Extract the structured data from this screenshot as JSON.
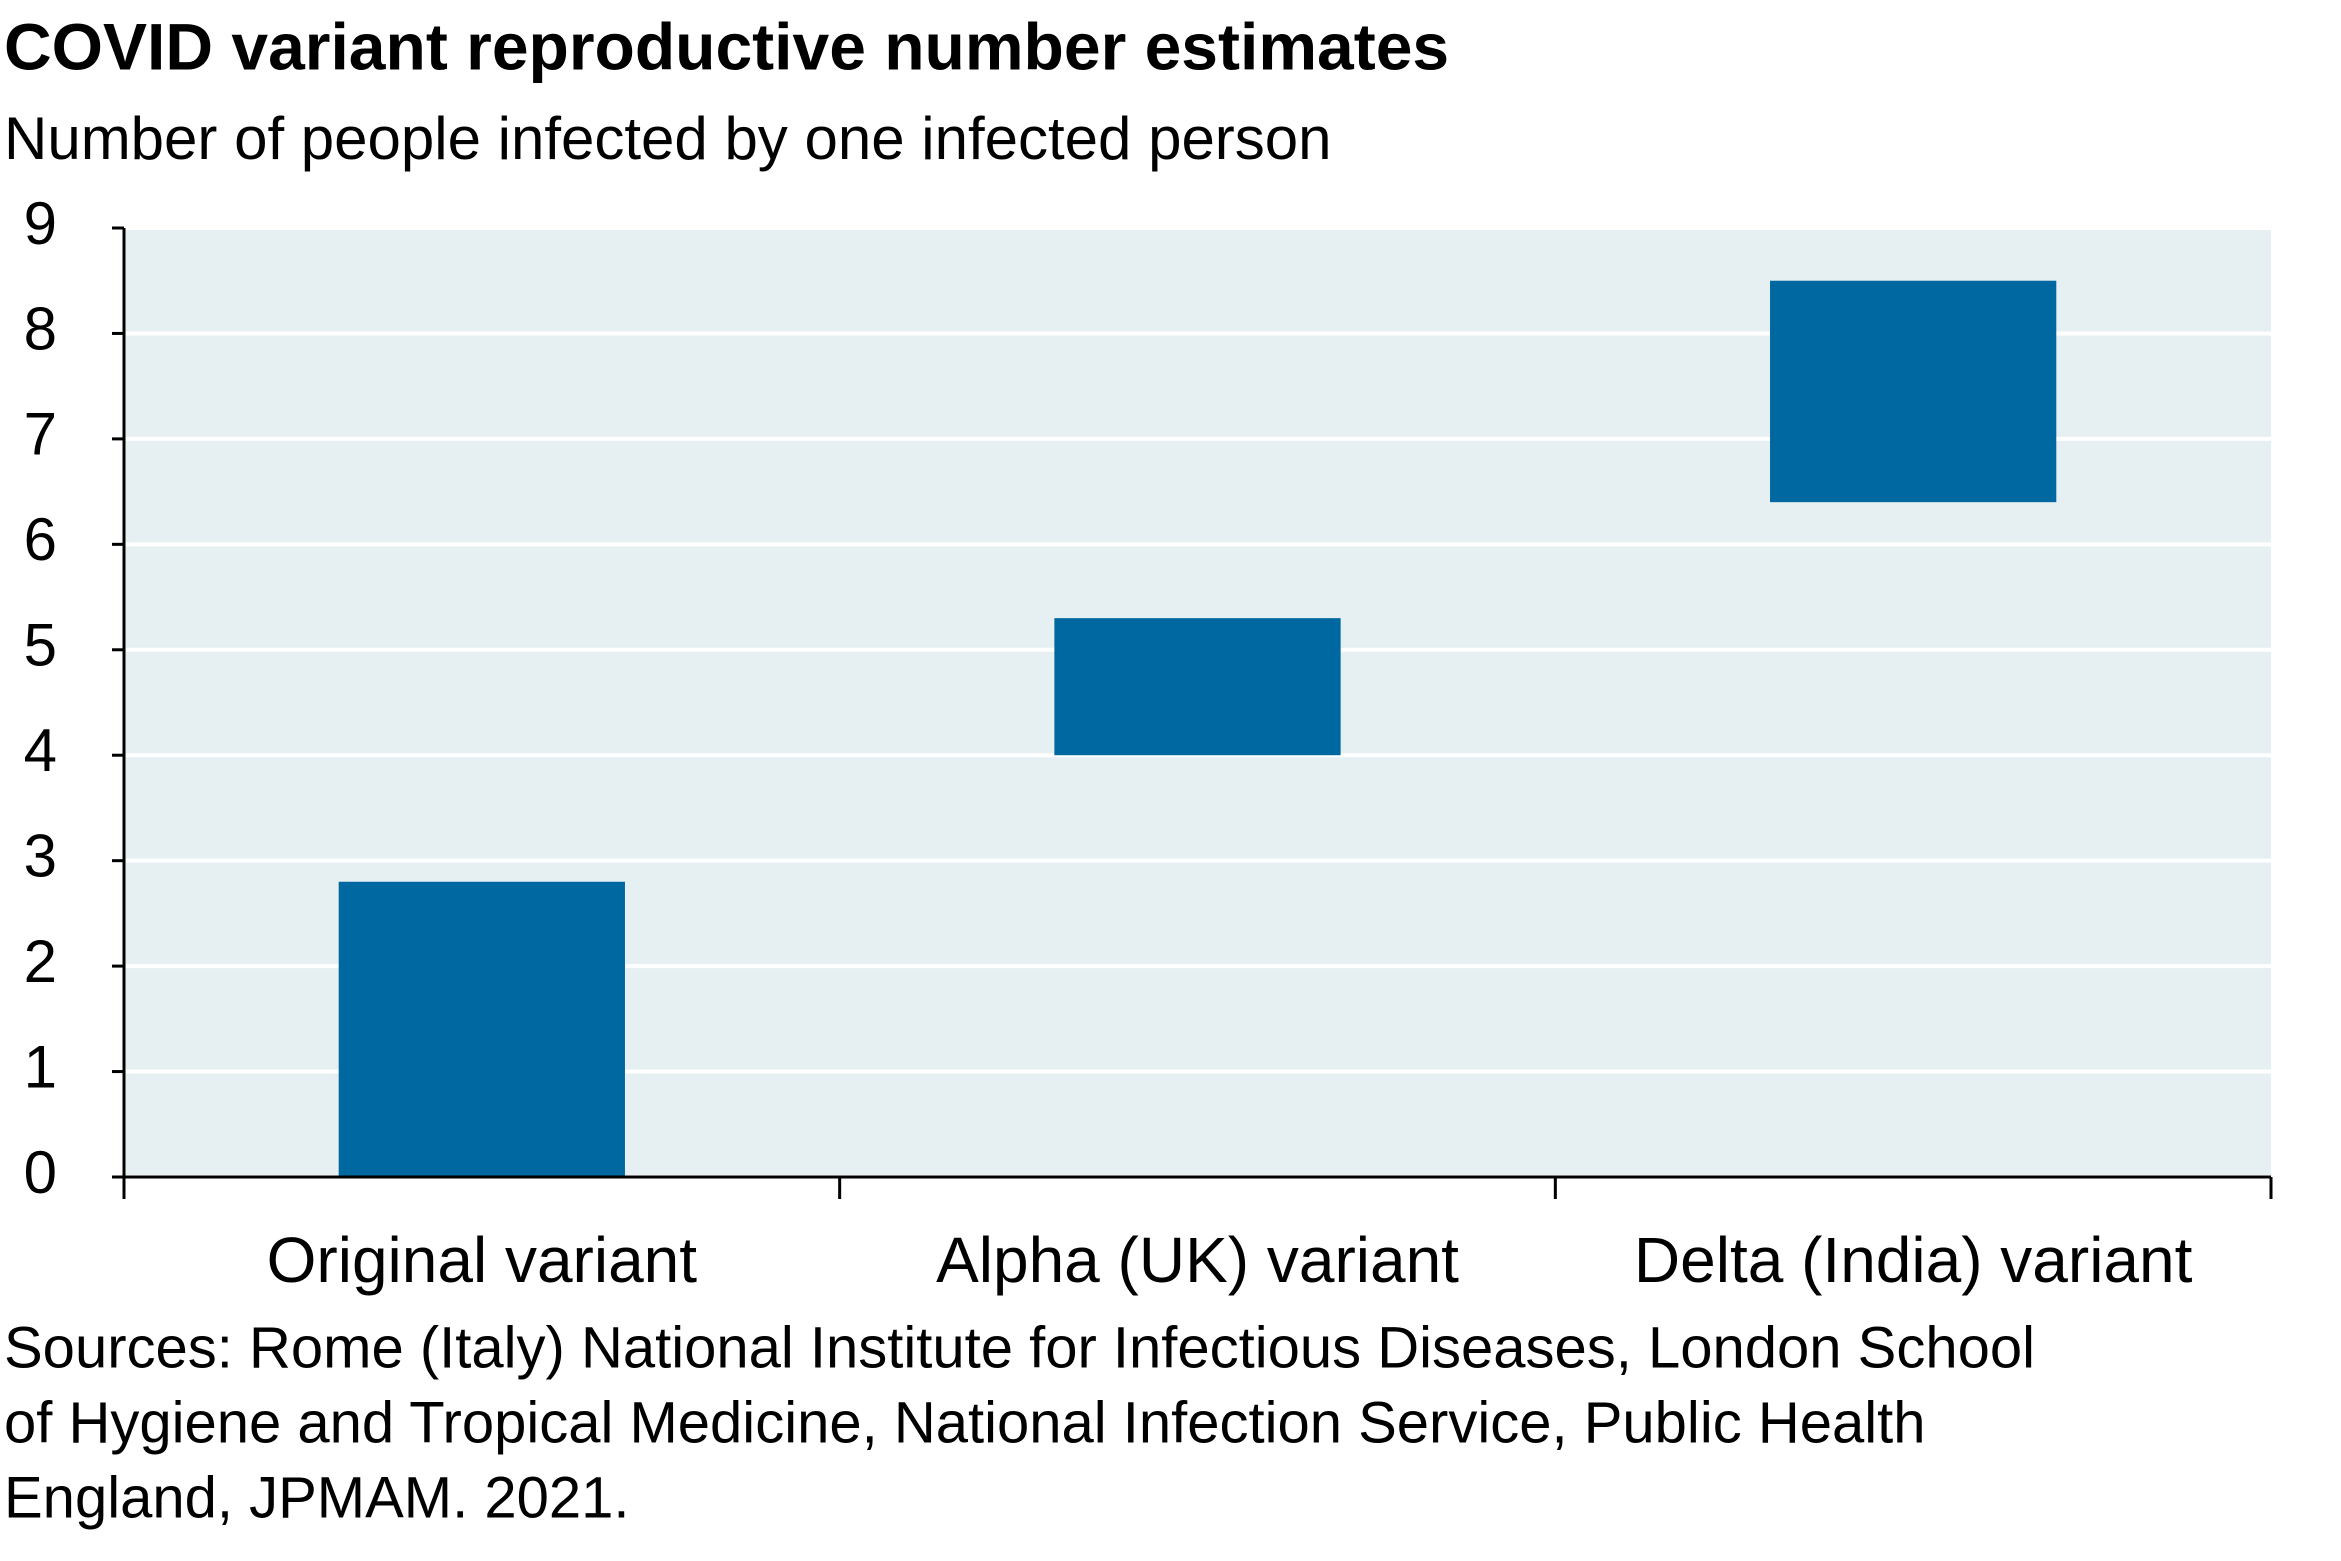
{
  "chart_data": {
    "type": "range-bar",
    "title": "COVID variant reproductive number estimates",
    "subtitle": "Number of people infected by one infected person",
    "categories": [
      "Original variant",
      "Alpha (UK) variant",
      "Delta (India) variant"
    ],
    "low": [
      0,
      4,
      6.4
    ],
    "high": [
      2.8,
      5.3,
      8.5
    ],
    "color": "#0068a0",
    "plot_background": "#e6eff2",
    "ylim": [
      0,
      9
    ],
    "yticks": [
      0,
      1,
      2,
      3,
      4,
      5,
      6,
      7,
      8,
      9
    ],
    "grid": true,
    "source_lines": [
      "Sources: Rome (Italy) National Institute for Infectious Diseases, London School",
      "of Hygiene and Tropical Medicine, National Infection Service, Public Health",
      "England, JPMAM. 2021."
    ]
  }
}
